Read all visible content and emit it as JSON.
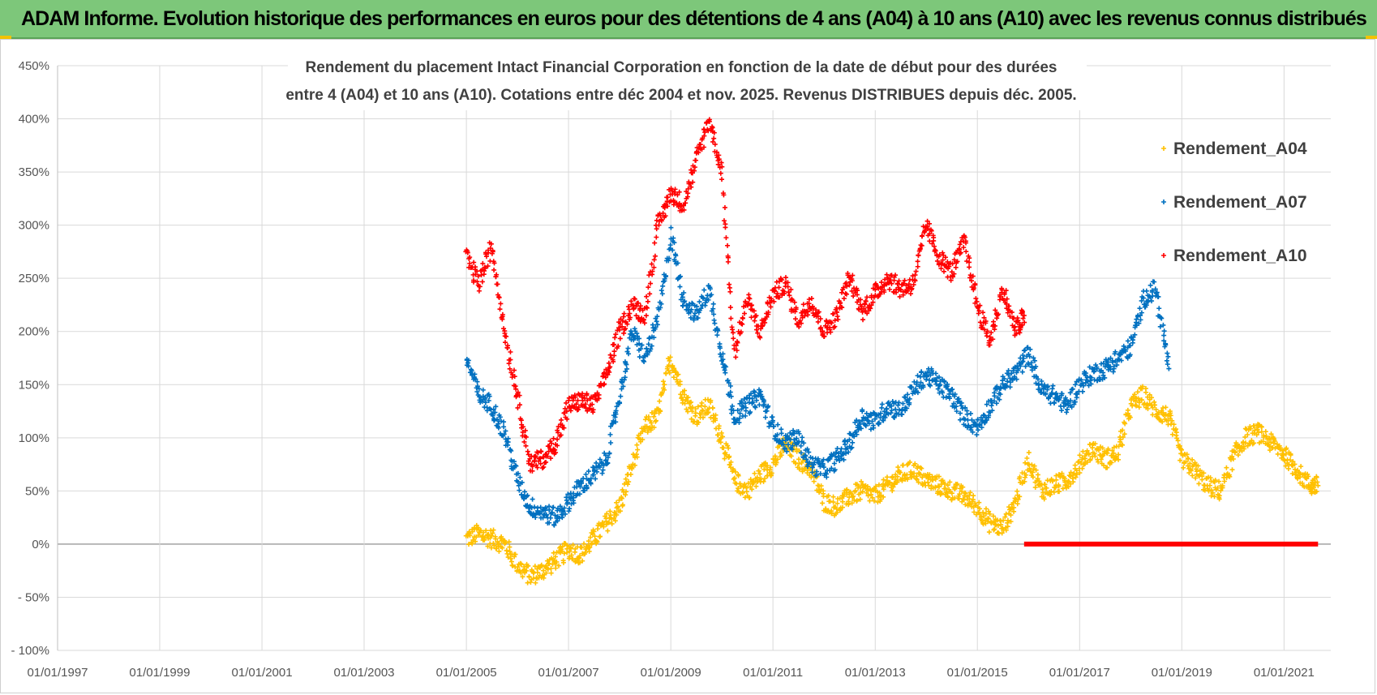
{
  "banner": {
    "title": "ADAM Informe. Evolution historique des performances en euros pour des détentions de 4 ans (A04) à 10 ans (A10) avec les revenus connus distribués"
  },
  "chart_data": {
    "type": "scatter",
    "title_lines": [
      "Rendement du placement Intact Financial Corporation en fonction de la date de début pour des durées",
      "entre 4 (A04) et 10 ans (A10). Cotations entre déc 2004 et nov. 2025. Revenus DISTRIBUES depuis déc. 2005."
    ],
    "xlabel": "",
    "ylabel": "",
    "x_ticks": [
      "01/01/1997",
      "01/01/1999",
      "01/01/2001",
      "01/01/2003",
      "01/01/2005",
      "01/01/2007",
      "01/01/2009",
      "01/01/2011",
      "01/01/2013",
      "01/01/2015",
      "01/01/2017",
      "01/01/2019",
      "01/01/2021"
    ],
    "x_range": [
      "01/01/1997",
      "01/12/2021"
    ],
    "y_ticks": [
      "- 100%",
      "- 50%",
      "0%",
      "50%",
      "100%",
      "150%",
      "200%",
      "250%",
      "300%",
      "350%",
      "400%",
      "450%"
    ],
    "y_range": [
      -100,
      450
    ],
    "y_unit": "%",
    "grid": true,
    "legend_position": "top-right",
    "series": [
      {
        "name": "Rendement_A04",
        "color": "#ffc000",
        "marker": "+",
        "points": [
          [
            "01/01/2005",
            5
          ],
          [
            "01/04/2005",
            10
          ],
          [
            "01/07/2005",
            5
          ],
          [
            "01/10/2005",
            0
          ],
          [
            "01/01/2006",
            -20
          ],
          [
            "01/04/2006",
            -30
          ],
          [
            "01/07/2006",
            -25
          ],
          [
            "01/10/2006",
            -15
          ],
          [
            "01/01/2007",
            -5
          ],
          [
            "01/04/2007",
            -10
          ],
          [
            "01/07/2007",
            5
          ],
          [
            "01/10/2007",
            20
          ],
          [
            "01/01/2008",
            35
          ],
          [
            "01/04/2008",
            75
          ],
          [
            "01/07/2008",
            110
          ],
          [
            "01/10/2008",
            120
          ],
          [
            "01/01/2009",
            175
          ],
          [
            "01/04/2009",
            140
          ],
          [
            "01/07/2009",
            120
          ],
          [
            "01/10/2009",
            130
          ],
          [
            "01/01/2010",
            100
          ],
          [
            "01/04/2010",
            60
          ],
          [
            "01/07/2010",
            50
          ],
          [
            "01/10/2010",
            65
          ],
          [
            "01/01/2011",
            75
          ],
          [
            "01/04/2011",
            95
          ],
          [
            "01/07/2011",
            80
          ],
          [
            "01/10/2011",
            70
          ],
          [
            "01/01/2012",
            40
          ],
          [
            "01/04/2012",
            35
          ],
          [
            "01/07/2012",
            45
          ],
          [
            "01/10/2012",
            50
          ],
          [
            "01/01/2013",
            45
          ],
          [
            "01/04/2013",
            55
          ],
          [
            "01/07/2013",
            65
          ],
          [
            "01/10/2013",
            70
          ],
          [
            "01/01/2014",
            60
          ],
          [
            "01/04/2014",
            55
          ],
          [
            "01/07/2014",
            50
          ],
          [
            "01/10/2014",
            45
          ],
          [
            "01/01/2015",
            35
          ],
          [
            "01/04/2015",
            20
          ],
          [
            "01/07/2015",
            15
          ],
          [
            "01/10/2015",
            40
          ],
          [
            "01/01/2016",
            80
          ],
          [
            "01/04/2016",
            50
          ],
          [
            "01/07/2016",
            55
          ],
          [
            "01/10/2016",
            60
          ],
          [
            "01/01/2017",
            75
          ],
          [
            "01/04/2017",
            90
          ],
          [
            "01/07/2017",
            80
          ],
          [
            "01/10/2017",
            85
          ],
          [
            "01/01/2018",
            130
          ],
          [
            "01/04/2018",
            140
          ],
          [
            "01/07/2018",
            125
          ],
          [
            "01/10/2018",
            120
          ],
          [
            "01/01/2019",
            80
          ],
          [
            "01/04/2019",
            70
          ],
          [
            "01/07/2019",
            55
          ],
          [
            "01/10/2019",
            50
          ],
          [
            "01/01/2020",
            80
          ],
          [
            "01/04/2020",
            100
          ],
          [
            "01/07/2020",
            105
          ],
          [
            "01/10/2020",
            95
          ],
          [
            "01/01/2021",
            85
          ],
          [
            "01/04/2021",
            70
          ],
          [
            "01/07/2021",
            55
          ],
          [
            "01/09/2021",
            55
          ]
        ]
      },
      {
        "name": "Rendement_A07",
        "color": "#0070c0",
        "marker": "+",
        "points": [
          [
            "01/01/2005",
            175
          ],
          [
            "01/04/2005",
            140
          ],
          [
            "01/07/2005",
            130
          ],
          [
            "01/10/2005",
            105
          ],
          [
            "01/01/2006",
            60
          ],
          [
            "01/04/2006",
            35
          ],
          [
            "01/07/2006",
            30
          ],
          [
            "01/10/2006",
            25
          ],
          [
            "01/01/2007",
            40
          ],
          [
            "01/04/2007",
            55
          ],
          [
            "01/07/2007",
            65
          ],
          [
            "01/10/2007",
            80
          ],
          [
            "01/01/2008",
            140
          ],
          [
            "01/04/2008",
            200
          ],
          [
            "01/07/2008",
            175
          ],
          [
            "01/10/2008",
            210
          ],
          [
            "01/01/2009",
            290
          ],
          [
            "01/04/2009",
            230
          ],
          [
            "01/07/2009",
            215
          ],
          [
            "01/10/2009",
            240
          ],
          [
            "01/01/2010",
            180
          ],
          [
            "01/04/2010",
            120
          ],
          [
            "01/07/2010",
            130
          ],
          [
            "01/10/2010",
            140
          ],
          [
            "01/01/2011",
            110
          ],
          [
            "01/04/2011",
            95
          ],
          [
            "01/07/2011",
            100
          ],
          [
            "01/10/2011",
            75
          ],
          [
            "01/01/2012",
            70
          ],
          [
            "01/04/2012",
            80
          ],
          [
            "01/07/2012",
            95
          ],
          [
            "01/10/2012",
            120
          ],
          [
            "01/01/2013",
            115
          ],
          [
            "01/04/2013",
            130
          ],
          [
            "01/07/2013",
            125
          ],
          [
            "01/10/2013",
            145
          ],
          [
            "01/01/2014",
            160
          ],
          [
            "01/04/2014",
            150
          ],
          [
            "01/07/2014",
            140
          ],
          [
            "01/10/2014",
            120
          ],
          [
            "01/01/2015",
            110
          ],
          [
            "01/04/2015",
            130
          ],
          [
            "01/07/2015",
            150
          ],
          [
            "01/10/2015",
            160
          ],
          [
            "01/01/2016",
            180
          ],
          [
            "01/04/2016",
            145
          ],
          [
            "01/07/2016",
            140
          ],
          [
            "01/10/2016",
            130
          ],
          [
            "01/01/2017",
            150
          ],
          [
            "01/04/2017",
            160
          ],
          [
            "01/07/2017",
            165
          ],
          [
            "01/10/2017",
            175
          ],
          [
            "01/01/2018",
            185
          ],
          [
            "01/04/2018",
            230
          ],
          [
            "01/07/2018",
            240
          ],
          [
            "01/10/2018",
            165
          ]
        ]
      },
      {
        "name": "Rendement_A10",
        "color": "#ff0000",
        "marker": "+",
        "points": [
          [
            "01/01/2005",
            270
          ],
          [
            "01/04/2005",
            245
          ],
          [
            "01/07/2005",
            280
          ],
          [
            "01/10/2005",
            200
          ],
          [
            "01/01/2006",
            140
          ],
          [
            "01/04/2006",
            75
          ],
          [
            "01/07/2006",
            80
          ],
          [
            "01/10/2006",
            95
          ],
          [
            "01/01/2007",
            130
          ],
          [
            "01/04/2007",
            135
          ],
          [
            "01/07/2007",
            130
          ],
          [
            "01/10/2007",
            160
          ],
          [
            "01/01/2008",
            200
          ],
          [
            "01/04/2008",
            225
          ],
          [
            "01/07/2008",
            215
          ],
          [
            "01/10/2008",
            300
          ],
          [
            "01/01/2009",
            330
          ],
          [
            "01/04/2009",
            320
          ],
          [
            "01/07/2009",
            360
          ],
          [
            "01/10/2009",
            400
          ],
          [
            "01/01/2010",
            350
          ],
          [
            "01/04/2010",
            180
          ],
          [
            "01/07/2010",
            230
          ],
          [
            "01/10/2010",
            200
          ],
          [
            "01/01/2011",
            235
          ],
          [
            "01/04/2011",
            245
          ],
          [
            "01/07/2011",
            210
          ],
          [
            "01/10/2011",
            230
          ],
          [
            "01/01/2012",
            200
          ],
          [
            "01/04/2012",
            215
          ],
          [
            "01/07/2012",
            250
          ],
          [
            "01/10/2012",
            220
          ],
          [
            "01/01/2013",
            235
          ],
          [
            "01/04/2013",
            250
          ],
          [
            "01/07/2013",
            240
          ],
          [
            "01/10/2013",
            245
          ],
          [
            "01/01/2014",
            300
          ],
          [
            "01/04/2014",
            270
          ],
          [
            "01/07/2014",
            255
          ],
          [
            "01/10/2014",
            285
          ],
          [
            "01/01/2015",
            225
          ],
          [
            "01/04/2015",
            190
          ],
          [
            "01/07/2015",
            240
          ],
          [
            "01/10/2015",
            200
          ],
          [
            "01/12/2015",
            215
          ]
        ],
        "zero_segment": {
          "from": "01/12/2015",
          "to": "01/09/2021",
          "value": 0
        }
      }
    ]
  }
}
